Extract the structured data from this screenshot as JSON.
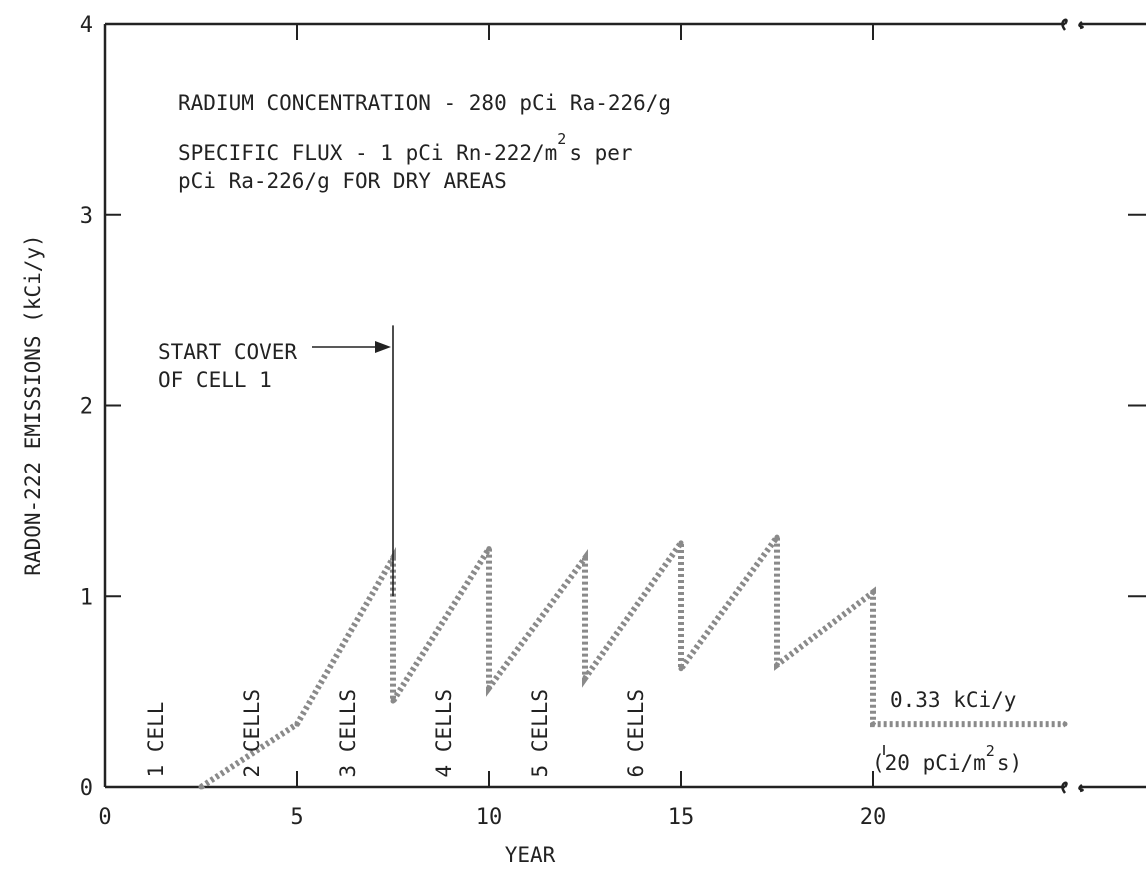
{
  "chart_data": {
    "type": "line",
    "xlabel": "YEAR",
    "ylabel": "RADON-222 EMISSIONS (kCi/y)",
    "xlim": [
      0,
      25
    ],
    "ylim": [
      0,
      4
    ],
    "xticks": [
      0,
      5,
      10,
      15,
      20
    ],
    "yticks": [
      0,
      1,
      2,
      3,
      4
    ],
    "grid": false,
    "series": [
      {
        "x": [
          2.5,
          5,
          7.5,
          7.5,
          10,
          10,
          12.5,
          12.5,
          15,
          15,
          17.5,
          17.5,
          20,
          20,
          25
        ],
        "y": [
          0,
          0.33,
          1.2,
          0.45,
          1.25,
          0.52,
          1.2,
          0.57,
          1.28,
          0.62,
          1.31,
          0.64,
          1.02,
          0.33,
          0.33
        ]
      }
    ],
    "annotations": {
      "concentration": "RADIUM CONCENTRATION - 280 pCi Ra-226/g",
      "flux_line1_a": "SPECIFIC FLUX - 1 pCi Rn-222/m",
      "flux_line1_sup": "2",
      "flux_line1_b": "s per",
      "flux_line2": "pCi Ra-226/g FOR DRY AREAS",
      "start_cover_line1": "START COVER",
      "start_cover_line2": "OF CELL 1",
      "start_cover_x": 7.5,
      "final_value": "0.33 kCi/y",
      "final_flux_a": "(20 pCi/m",
      "final_flux_sup": "2",
      "final_flux_b": "s)",
      "cell_labels": [
        {
          "text": "1 CELL",
          "x": 1.25
        },
        {
          "text": "2 CELLS",
          "x": 3.75
        },
        {
          "text": "3 CELLS",
          "x": 6.25
        },
        {
          "text": "4 CELLS",
          "x": 8.75
        },
        {
          "text": "5 CELLS",
          "x": 11.25
        },
        {
          "text": "6 CELLS",
          "x": 13.75
        }
      ]
    }
  }
}
